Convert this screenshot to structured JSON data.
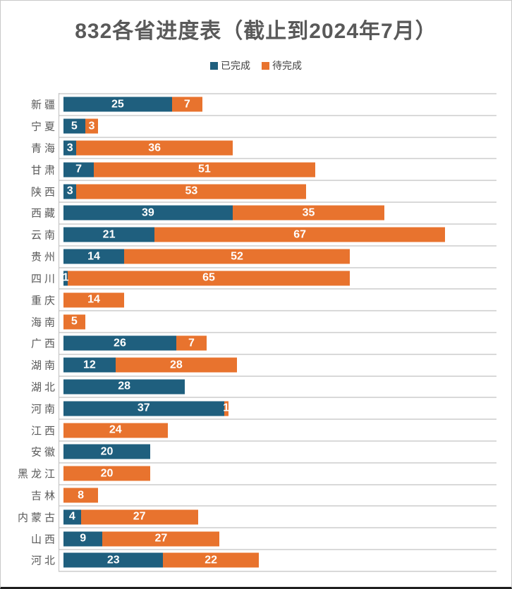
{
  "title": "832各省进度表（截止到2024年7月）",
  "legend": {
    "completed": {
      "label": "已完成",
      "color": "#1F5F7E"
    },
    "pending": {
      "label": "待完成",
      "color": "#E8732E"
    }
  },
  "colors": {
    "completed": "#1F5F7E",
    "pending": "#E8732E",
    "gridline": "#D9D9D9",
    "axis_line": "#BFBFBF",
    "category_text": "#595959",
    "value_text": "#FFFFFF",
    "title_text": "#595959"
  },
  "chart_data": {
    "type": "bar",
    "orientation": "horizontal",
    "stacked": true,
    "title": "832各省进度表（截止到2024年7月）",
    "legend_position": "top",
    "grid": "category separators only",
    "xlim": [
      0,
      100
    ],
    "categories": [
      "新疆",
      "宁夏",
      "青海",
      "甘肃",
      "陕西",
      "西藏",
      "云南",
      "贵州",
      "四川",
      "重庆",
      "海南",
      "广西",
      "湖南",
      "湖北",
      "河南",
      "江西",
      "安徽",
      "黑龙江",
      "吉林",
      "内蒙古",
      "山西",
      "河北"
    ],
    "series": [
      {
        "name": "已完成",
        "color": "#1F5F7E",
        "values": [
          25,
          5,
          3,
          7,
          3,
          39,
          21,
          14,
          1,
          0,
          0,
          26,
          12,
          28,
          37,
          0,
          20,
          0,
          0,
          4,
          9,
          23
        ]
      },
      {
        "name": "待完成",
        "color": "#E8732E",
        "values": [
          7,
          3,
          36,
          51,
          53,
          35,
          67,
          52,
          65,
          14,
          5,
          7,
          28,
          0,
          1,
          24,
          0,
          20,
          8,
          27,
          27,
          22
        ]
      }
    ],
    "data_labels": "white bold numbers centered in each non-zero segment"
  }
}
